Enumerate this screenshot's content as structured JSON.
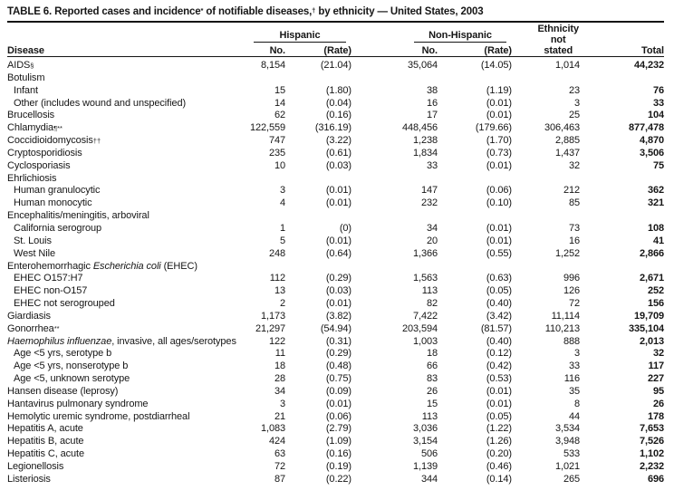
{
  "title": {
    "part1": "TABLE 6. Reported cases and incidence",
    "sup1": "*",
    "part2": " of notifiable diseases,",
    "sup2": "†",
    "part3": " by ethnicity — United States, 2003"
  },
  "header": {
    "disease": "Disease",
    "group_hispanic": "Hispanic",
    "group_non_hispanic": "Non-Hispanic",
    "ethnicity": [
      "Ethnicity",
      "not",
      "stated"
    ],
    "no1": "No.",
    "rate1": "(Rate)",
    "no2": "No.",
    "rate2": "(Rate)",
    "total": "Total"
  },
  "rows": [
    {
      "label": [
        {
          "t": "AIDS"
        },
        {
          "t": "§",
          "sup": true
        }
      ],
      "indent": false,
      "cells": [
        "8,154",
        "(21.04)",
        "35,064",
        "(14.05)",
        "1,014",
        "44,232"
      ]
    },
    {
      "label": [
        {
          "t": "Botulism"
        }
      ],
      "indent": false,
      "cells": [
        "",
        "",
        "",
        "",
        "",
        ""
      ]
    },
    {
      "label": [
        {
          "t": "Infant"
        }
      ],
      "indent": true,
      "cells": [
        "15",
        "(1.80)",
        "38",
        "(1.19)",
        "23",
        "76"
      ]
    },
    {
      "label": [
        {
          "t": "Other (includes wound and unspecified)"
        }
      ],
      "indent": true,
      "cells": [
        "14",
        "(0.04)",
        "16",
        "(0.01)",
        "3",
        "33"
      ]
    },
    {
      "label": [
        {
          "t": "Brucellosis"
        }
      ],
      "indent": false,
      "cells": [
        "62",
        "(0.16)",
        "17",
        "(0.01)",
        "25",
        "104"
      ]
    },
    {
      "label": [
        {
          "t": "Chlamydia"
        },
        {
          "t": "¶**",
          "sup": true
        }
      ],
      "indent": false,
      "cells": [
        "122,559",
        "(316.19)",
        "448,456",
        "(179.66)",
        "306,463",
        "877,478"
      ]
    },
    {
      "label": [
        {
          "t": "Coccidioidomycosis"
        },
        {
          "t": "††",
          "sup": true
        }
      ],
      "indent": false,
      "cells": [
        "747",
        "(3.22)",
        "1,238",
        "(1.70)",
        "2,885",
        "4,870"
      ]
    },
    {
      "label": [
        {
          "t": "Cryptosporidiosis"
        }
      ],
      "indent": false,
      "cells": [
        "235",
        "(0.61)",
        "1,834",
        "(0.73)",
        "1,437",
        "3,506"
      ]
    },
    {
      "label": [
        {
          "t": "Cyclosporiasis"
        }
      ],
      "indent": false,
      "cells": [
        "10",
        "(0.03)",
        "33",
        "(0.01)",
        "32",
        "75"
      ]
    },
    {
      "label": [
        {
          "t": "Ehrlichiosis"
        }
      ],
      "indent": false,
      "cells": [
        "",
        "",
        "",
        "",
        "",
        ""
      ]
    },
    {
      "label": [
        {
          "t": "Human granulocytic"
        }
      ],
      "indent": true,
      "cells": [
        "3",
        "(0.01)",
        "147",
        "(0.06)",
        "212",
        "362"
      ]
    },
    {
      "label": [
        {
          "t": "Human monocytic"
        }
      ],
      "indent": true,
      "cells": [
        "4",
        "(0.01)",
        "232",
        "(0.10)",
        "85",
        "321"
      ]
    },
    {
      "label": [
        {
          "t": "Encephalitis/meningitis, arboviral"
        }
      ],
      "indent": false,
      "cells": [
        "",
        "",
        "",
        "",
        "",
        ""
      ]
    },
    {
      "label": [
        {
          "t": "California serogroup"
        }
      ],
      "indent": true,
      "cells": [
        "1",
        "(0)",
        "34",
        "(0.01)",
        "73",
        "108"
      ]
    },
    {
      "label": [
        {
          "t": "St. Louis"
        }
      ],
      "indent": true,
      "cells": [
        "5",
        "(0.01)",
        "20",
        "(0.01)",
        "16",
        "41"
      ]
    },
    {
      "label": [
        {
          "t": "West Nile"
        }
      ],
      "indent": true,
      "cells": [
        "248",
        "(0.64)",
        "1,366",
        "(0.55)",
        "1,252",
        "2,866"
      ]
    },
    {
      "label": [
        {
          "t": "Enterohemorrhagic "
        },
        {
          "t": "Escherichia coli",
          "i": true
        },
        {
          "t": " (EHEC)"
        }
      ],
      "indent": false,
      "cells": [
        "",
        "",
        "",
        "",
        "",
        ""
      ]
    },
    {
      "label": [
        {
          "t": "EHEC O157:H7"
        }
      ],
      "indent": true,
      "cells": [
        "112",
        "(0.29)",
        "1,563",
        "(0.63)",
        "996",
        "2,671"
      ]
    },
    {
      "label": [
        {
          "t": "EHEC non-O157"
        }
      ],
      "indent": true,
      "cells": [
        "13",
        "(0.03)",
        "113",
        "(0.05)",
        "126",
        "252"
      ]
    },
    {
      "label": [
        {
          "t": "EHEC not serogrouped"
        }
      ],
      "indent": true,
      "cells": [
        "2",
        "(0.01)",
        "82",
        "(0.40)",
        "72",
        "156"
      ]
    },
    {
      "label": [
        {
          "t": "Giardiasis"
        }
      ],
      "indent": false,
      "cells": [
        "1,173",
        "(3.82)",
        "7,422",
        "(3.42)",
        "11,114",
        "19,709"
      ]
    },
    {
      "label": [
        {
          "t": "Gonorrhea"
        },
        {
          "t": "**",
          "sup": true
        }
      ],
      "indent": false,
      "cells": [
        "21,297",
        "(54.94)",
        "203,594",
        "(81.57)",
        "110,213",
        "335,104"
      ]
    },
    {
      "label": [
        {
          "t": "Haemophilus influenzae",
          "i": true
        },
        {
          "t": ", invasive, all ages/serotypes"
        }
      ],
      "indent": false,
      "cells": [
        "122",
        "(0.31)",
        "1,003",
        "(0.40)",
        "888",
        "2,013"
      ]
    },
    {
      "label": [
        {
          "t": "Age <5 yrs, serotype b"
        }
      ],
      "indent": true,
      "cells": [
        "11",
        "(0.29)",
        "18",
        "(0.12)",
        "3",
        "32"
      ]
    },
    {
      "label": [
        {
          "t": "Age <5 yrs, nonserotype b"
        }
      ],
      "indent": true,
      "cells": [
        "18",
        "(0.48)",
        "66",
        "(0.42)",
        "33",
        "117"
      ]
    },
    {
      "label": [
        {
          "t": "Age <5, unknown serotype"
        }
      ],
      "indent": true,
      "cells": [
        "28",
        "(0.75)",
        "83",
        "(0.53)",
        "116",
        "227"
      ]
    },
    {
      "label": [
        {
          "t": "Hansen disease (leprosy)"
        }
      ],
      "indent": false,
      "cells": [
        "34",
        "(0.09)",
        "26",
        "(0.01)",
        "35",
        "95"
      ]
    },
    {
      "label": [
        {
          "t": "Hantavirus pulmonary syndrome"
        }
      ],
      "indent": false,
      "cells": [
        "3",
        "(0.01)",
        "15",
        "(0.01)",
        "8",
        "26"
      ]
    },
    {
      "label": [
        {
          "t": "Hemolytic uremic syndrome, postdiarrheal"
        }
      ],
      "indent": false,
      "cells": [
        "21",
        "(0.06)",
        "113",
        "(0.05)",
        "44",
        "178"
      ]
    },
    {
      "label": [
        {
          "t": "Hepatitis A, acute"
        }
      ],
      "indent": false,
      "cells": [
        "1,083",
        "(2.79)",
        "3,036",
        "(1.22)",
        "3,534",
        "7,653"
      ]
    },
    {
      "label": [
        {
          "t": "Hepatitis B, acute"
        }
      ],
      "indent": false,
      "cells": [
        "424",
        "(1.09)",
        "3,154",
        "(1.26)",
        "3,948",
        "7,526"
      ]
    },
    {
      "label": [
        {
          "t": "Hepatitis C, acute"
        }
      ],
      "indent": false,
      "cells": [
        "63",
        "(0.16)",
        "506",
        "(0.20)",
        "533",
        "1,102"
      ]
    },
    {
      "label": [
        {
          "t": "Legionellosis"
        }
      ],
      "indent": false,
      "cells": [
        "72",
        "(0.19)",
        "1,139",
        "(0.46)",
        "1,021",
        "2,232"
      ]
    },
    {
      "label": [
        {
          "t": "Listeriosis"
        }
      ],
      "indent": false,
      "cells": [
        "87",
        "(0.22)",
        "344",
        "(0.14)",
        "265",
        "696"
      ]
    }
  ]
}
